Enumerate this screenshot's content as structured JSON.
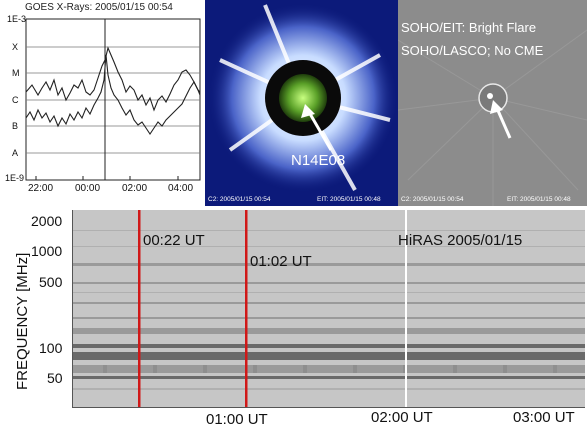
{
  "goes": {
    "title": "GOES X-Rays: 2005/01/15 00:54",
    "y_labels": [
      "1E-3",
      "X",
      "M",
      "C",
      "B",
      "A",
      "1E-9"
    ],
    "x_labels": [
      "22:00",
      "00:00",
      "02:00",
      "04:00"
    ]
  },
  "lasco": {
    "location_label": "N14E08",
    "footer_left": "C2: 2005/01/15 00:54",
    "footer_right": "EIT: 2005/01/15 00:48"
  },
  "eit": {
    "title_line1": "SOHO/EIT: Bright Flare",
    "title_line2": "SOHO/LASCO; No CME",
    "footer_left": "C2: 2005/01/15 00:54",
    "footer_right": "EIT: 2005/01/15 00:48"
  },
  "hiras": {
    "title": "HiRAS 2005/01/15",
    "y_axis_title": "FREQUENCY  [MHz]",
    "freq_ticks": [
      "2000",
      "1000",
      "500",
      "100",
      "50"
    ],
    "time_ticks": [
      "01:00 UT",
      "02:00 UT",
      "03:00 UT"
    ],
    "markers": [
      "00:22 UT",
      "01:02 UT"
    ],
    "colors": {
      "marker": "#d01818",
      "gap": "#ffffff"
    }
  }
}
